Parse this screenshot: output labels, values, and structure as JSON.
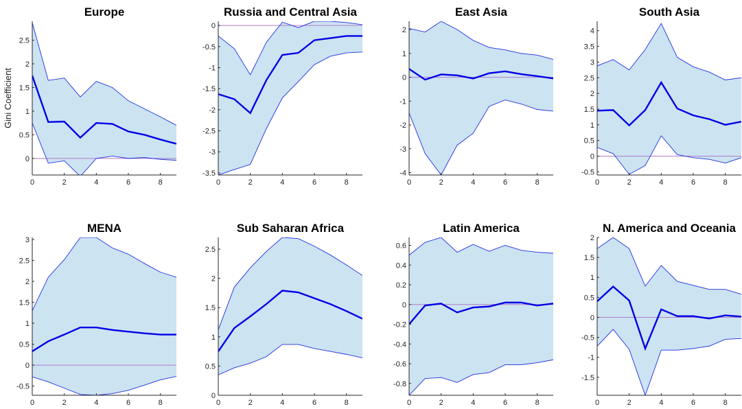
{
  "chart_data": [
    {
      "type": "line",
      "title": "Europe",
      "ylabel": "Gini Coefficient",
      "x": [
        0,
        1,
        2,
        3,
        4,
        5,
        6,
        7,
        8,
        9
      ],
      "xlim": [
        0,
        9
      ],
      "xticks": [
        0,
        2,
        4,
        6,
        8
      ],
      "ylim": [
        -0.35,
        2.9
      ],
      "yticks": [
        0,
        0.5,
        1,
        1.5,
        2,
        2.5
      ],
      "series": [
        {
          "role": "estimate",
          "values": [
            1.75,
            0.77,
            0.78,
            0.44,
            0.75,
            0.73,
            0.57,
            0.5,
            0.4,
            0.31
          ]
        },
        {
          "role": "upper",
          "values": [
            2.87,
            1.65,
            1.7,
            1.3,
            1.63,
            1.5,
            1.22,
            1.05,
            0.88,
            0.7
          ]
        },
        {
          "role": "lower",
          "values": [
            0.75,
            -0.1,
            -0.05,
            -0.38,
            0.0,
            0.05,
            0.0,
            0.02,
            -0.02,
            -0.04
          ]
        },
        {
          "role": "zero",
          "values": [
            0,
            0,
            0,
            0,
            0,
            0,
            0,
            0,
            0,
            0
          ]
        }
      ],
      "colors": {
        "estimate": "#0000e6",
        "band": "#cce3f2",
        "bound": "#1f2fe0",
        "zero": "#b07ac8"
      }
    },
    {
      "type": "line",
      "title": "Russia and Central Asia",
      "ylabel": "",
      "x": [
        0,
        1,
        2,
        3,
        4,
        5,
        6,
        7,
        8,
        9
      ],
      "xlim": [
        0,
        9
      ],
      "xticks": [
        0,
        2,
        4,
        6,
        8
      ],
      "ylim": [
        -3.55,
        0.1
      ],
      "yticks": [
        -3.5,
        -3,
        -2.5,
        -2,
        -1.5,
        -1,
        -0.5,
        0
      ],
      "series": [
        {
          "role": "estimate",
          "values": [
            -1.63,
            -1.75,
            -2.08,
            -1.3,
            -0.7,
            -0.65,
            -0.35,
            -0.3,
            -0.25,
            -0.25
          ]
        },
        {
          "role": "upper",
          "values": [
            -0.25,
            -0.55,
            -1.17,
            -0.4,
            0.08,
            -0.05,
            0.1,
            0.1,
            0.07,
            0.02
          ]
        },
        {
          "role": "lower",
          "values": [
            -3.55,
            -3.42,
            -3.3,
            -2.45,
            -1.72,
            -1.33,
            -0.93,
            -0.73,
            -0.65,
            -0.63
          ]
        },
        {
          "role": "zero",
          "values": [
            0,
            0,
            0,
            0,
            0,
            0,
            0,
            0,
            0,
            0
          ]
        }
      ],
      "colors": {
        "estimate": "#0000e6",
        "band": "#cce3f2",
        "bound": "#1f2fe0",
        "zero": "#b07ac8"
      }
    },
    {
      "type": "line",
      "title": "East Asia",
      "ylabel": "",
      "x": [
        0,
        1,
        2,
        3,
        4,
        5,
        6,
        7,
        8,
        9
      ],
      "xlim": [
        0,
        9
      ],
      "xticks": [
        0,
        2,
        4,
        6,
        8
      ],
      "ylim": [
        -4.1,
        2.35
      ],
      "yticks": [
        -4,
        -3,
        -2,
        -1,
        0,
        1,
        2
      ],
      "series": [
        {
          "role": "estimate",
          "values": [
            0.35,
            -0.1,
            0.12,
            0.08,
            -0.05,
            0.17,
            0.25,
            0.13,
            0.05,
            -0.05
          ]
        },
        {
          "role": "upper",
          "values": [
            2.05,
            1.9,
            2.35,
            2.0,
            1.55,
            1.25,
            1.15,
            1.0,
            0.93,
            0.75
          ]
        },
        {
          "role": "lower",
          "values": [
            -1.5,
            -3.2,
            -4.1,
            -2.85,
            -2.35,
            -1.22,
            -0.95,
            -1.12,
            -1.35,
            -1.42
          ]
        },
        {
          "role": "zero",
          "values": [
            0,
            0,
            0,
            0,
            0,
            0,
            0,
            0,
            0,
            0
          ]
        }
      ],
      "colors": {
        "estimate": "#0000e6",
        "band": "#cce3f2",
        "bound": "#1f2fe0",
        "zero": "#b07ac8"
      }
    },
    {
      "type": "line",
      "title": "South Asia",
      "ylabel": "",
      "x": [
        0,
        1,
        2,
        3,
        4,
        5,
        6,
        7,
        8,
        9
      ],
      "xlim": [
        0,
        9
      ],
      "xticks": [
        0,
        2,
        4,
        6,
        8
      ],
      "ylim": [
        -0.6,
        4.3
      ],
      "yticks": [
        -0.5,
        0,
        0.5,
        1,
        1.5,
        2,
        2.5,
        3,
        3.5,
        4
      ],
      "series": [
        {
          "role": "estimate",
          "values": [
            1.45,
            1.47,
            0.98,
            1.47,
            2.35,
            1.52,
            1.3,
            1.18,
            1.0,
            1.1
          ]
        },
        {
          "role": "upper",
          "values": [
            2.88,
            3.08,
            2.75,
            3.4,
            4.23,
            3.15,
            2.85,
            2.68,
            2.43,
            2.5
          ]
        },
        {
          "role": "lower",
          "values": [
            0.28,
            0.08,
            -0.58,
            -0.3,
            0.65,
            0.05,
            -0.05,
            -0.1,
            -0.22,
            -0.05
          ]
        },
        {
          "role": "zero",
          "values": [
            0,
            0,
            0,
            0,
            0,
            0,
            0,
            0,
            0,
            0
          ]
        }
      ],
      "colors": {
        "estimate": "#0000e6",
        "band": "#cce3f2",
        "bound": "#1f2fe0",
        "zero": "#b07ac8"
      }
    },
    {
      "type": "line",
      "title": "MENA",
      "ylabel": "",
      "x": [
        0,
        1,
        2,
        3,
        4,
        5,
        6,
        7,
        8,
        9
      ],
      "xlim": [
        0,
        9
      ],
      "xticks": [
        0,
        2,
        4,
        6,
        8
      ],
      "ylim": [
        -0.72,
        3.05
      ],
      "yticks": [
        -0.5,
        0,
        0.5,
        1,
        1.5,
        2,
        2.5,
        3
      ],
      "series": [
        {
          "role": "estimate",
          "values": [
            0.33,
            0.57,
            0.73,
            0.9,
            0.9,
            0.84,
            0.8,
            0.76,
            0.73,
            0.73
          ]
        },
        {
          "role": "upper",
          "values": [
            1.3,
            2.1,
            2.52,
            3.05,
            3.05,
            2.8,
            2.65,
            2.43,
            2.22,
            2.1
          ]
        },
        {
          "role": "lower",
          "values": [
            -0.28,
            -0.4,
            -0.55,
            -0.7,
            -0.72,
            -0.68,
            -0.6,
            -0.48,
            -0.35,
            -0.27
          ]
        },
        {
          "role": "zero",
          "values": [
            0,
            0,
            0,
            0,
            0,
            0,
            0,
            0,
            0,
            0
          ]
        }
      ],
      "colors": {
        "estimate": "#0000e6",
        "band": "#cce3f2",
        "bound": "#1f2fe0",
        "zero": "#b07ac8"
      }
    },
    {
      "type": "line",
      "title": "Sub Saharan Africa",
      "ylabel": "",
      "x": [
        0,
        1,
        2,
        3,
        4,
        5,
        6,
        7,
        8,
        9
      ],
      "xlim": [
        0,
        9
      ],
      "xticks": [
        0,
        2,
        4,
        6,
        8
      ],
      "ylim": [
        0,
        2.7
      ],
      "yticks": [
        0,
        0.5,
        1,
        1.5,
        2,
        2.5
      ],
      "series": [
        {
          "role": "estimate",
          "values": [
            0.75,
            1.15,
            1.35,
            1.56,
            1.79,
            1.76,
            1.66,
            1.56,
            1.44,
            1.31
          ]
        },
        {
          "role": "upper",
          "values": [
            1.12,
            1.85,
            2.18,
            2.46,
            2.7,
            2.68,
            2.55,
            2.4,
            2.23,
            2.05
          ]
        },
        {
          "role": "lower",
          "values": [
            0.35,
            0.47,
            0.55,
            0.66,
            0.87,
            0.87,
            0.8,
            0.75,
            0.7,
            0.64
          ]
        },
        {
          "role": "zero",
          "values": [
            0,
            0,
            0,
            0,
            0,
            0,
            0,
            0,
            0,
            0
          ]
        }
      ],
      "colors": {
        "estimate": "#0000e6",
        "band": "#cce3f2",
        "bound": "#1f2fe0",
        "zero": "#b07ac8"
      }
    },
    {
      "type": "line",
      "title": "Latin America",
      "ylabel": "",
      "x": [
        0,
        1,
        2,
        3,
        4,
        5,
        6,
        7,
        8,
        9
      ],
      "xlim": [
        0,
        9
      ],
      "xticks": [
        0,
        2,
        4,
        6,
        8
      ],
      "ylim": [
        -0.92,
        0.68
      ],
      "yticks": [
        -0.8,
        -0.6,
        -0.4,
        -0.2,
        0,
        0.2,
        0.4,
        0.6
      ],
      "series": [
        {
          "role": "estimate",
          "values": [
            -0.2,
            -0.01,
            0.01,
            -0.08,
            -0.03,
            -0.02,
            0.02,
            0.02,
            -0.01,
            0.01
          ]
        },
        {
          "role": "upper",
          "values": [
            0.5,
            0.63,
            0.68,
            0.53,
            0.61,
            0.54,
            0.6,
            0.55,
            0.53,
            0.52
          ]
        },
        {
          "role": "lower",
          "values": [
            -0.92,
            -0.75,
            -0.74,
            -0.79,
            -0.71,
            -0.69,
            -0.61,
            -0.61,
            -0.59,
            -0.56
          ]
        },
        {
          "role": "zero",
          "values": [
            0,
            0,
            0,
            0,
            0,
            0,
            0,
            0,
            0,
            0
          ]
        }
      ],
      "colors": {
        "estimate": "#0000e6",
        "band": "#cce3f2",
        "bound": "#1f2fe0",
        "zero": "#b07ac8"
      }
    },
    {
      "type": "line",
      "title": "N. America and Oceania",
      "ylabel": "",
      "x": [
        0,
        1,
        2,
        3,
        4,
        5,
        6,
        7,
        8,
        9
      ],
      "xlim": [
        0,
        9
      ],
      "xticks": [
        0,
        2,
        4,
        6,
        8
      ],
      "ylim": [
        -1.95,
        2.0
      ],
      "yticks": [
        -1.5,
        -1,
        -0.5,
        0,
        0.5,
        1,
        1.5,
        2
      ],
      "series": [
        {
          "role": "estimate",
          "values": [
            0.4,
            0.77,
            0.42,
            -0.78,
            0.2,
            0.03,
            0.03,
            -0.03,
            0.05,
            0.02
          ]
        },
        {
          "role": "upper",
          "values": [
            1.72,
            2.0,
            1.72,
            0.78,
            1.3,
            0.9,
            0.8,
            0.7,
            0.7,
            0.58
          ]
        },
        {
          "role": "lower",
          "values": [
            -0.72,
            -0.3,
            -0.8,
            -1.95,
            -0.82,
            -0.82,
            -0.78,
            -0.72,
            -0.55,
            -0.53
          ]
        },
        {
          "role": "zero",
          "values": [
            0,
            0,
            0,
            0,
            0,
            0,
            0,
            0,
            0,
            0
          ]
        }
      ],
      "colors": {
        "estimate": "#0000e6",
        "band": "#cce3f2",
        "bound": "#1f2fe0",
        "zero": "#b07ac8"
      }
    }
  ]
}
